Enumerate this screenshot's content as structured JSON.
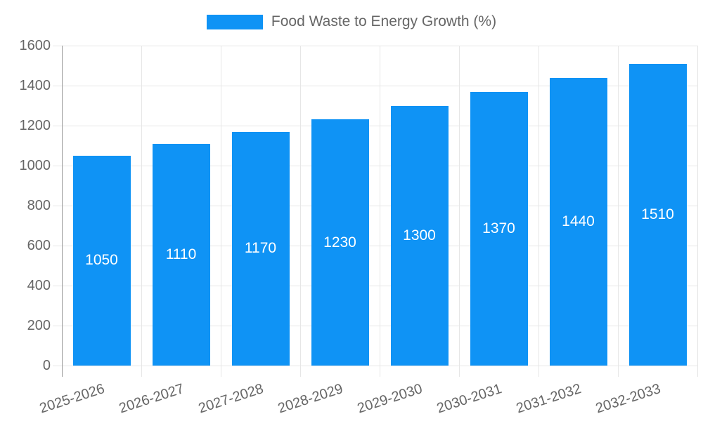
{
  "chart_data": {
    "type": "bar",
    "title": "",
    "legend": [
      "Food Waste to Energy Growth (%)"
    ],
    "legend_position": "top",
    "categories": [
      "2025-2026",
      "2026-2027",
      "2027-2028",
      "2028-2029",
      "2029-2030",
      "2030-2031",
      "2031-2032",
      "2032-2033"
    ],
    "values": [
      1050,
      1110,
      1170,
      1230,
      1300,
      1370,
      1440,
      1510
    ],
    "bar_value_labels": [
      "1050",
      "1110",
      "1170",
      "1230",
      "1300",
      "1370",
      "1440",
      "1510"
    ],
    "xlabel": "",
    "ylabel": "",
    "ylim": [
      0,
      1600
    ],
    "yticks": [
      0,
      200,
      400,
      600,
      800,
      1000,
      1200,
      1400,
      1600
    ],
    "grid": true,
    "x_label_rotation_deg": -18,
    "colors": {
      "bar": "#0f93f5",
      "bar_value_text": "#ffffff",
      "axis_text": "#666666",
      "grid_line": "#e6e6e6",
      "axis_line": "#9a9a9a",
      "background": "#ffffff"
    }
  }
}
